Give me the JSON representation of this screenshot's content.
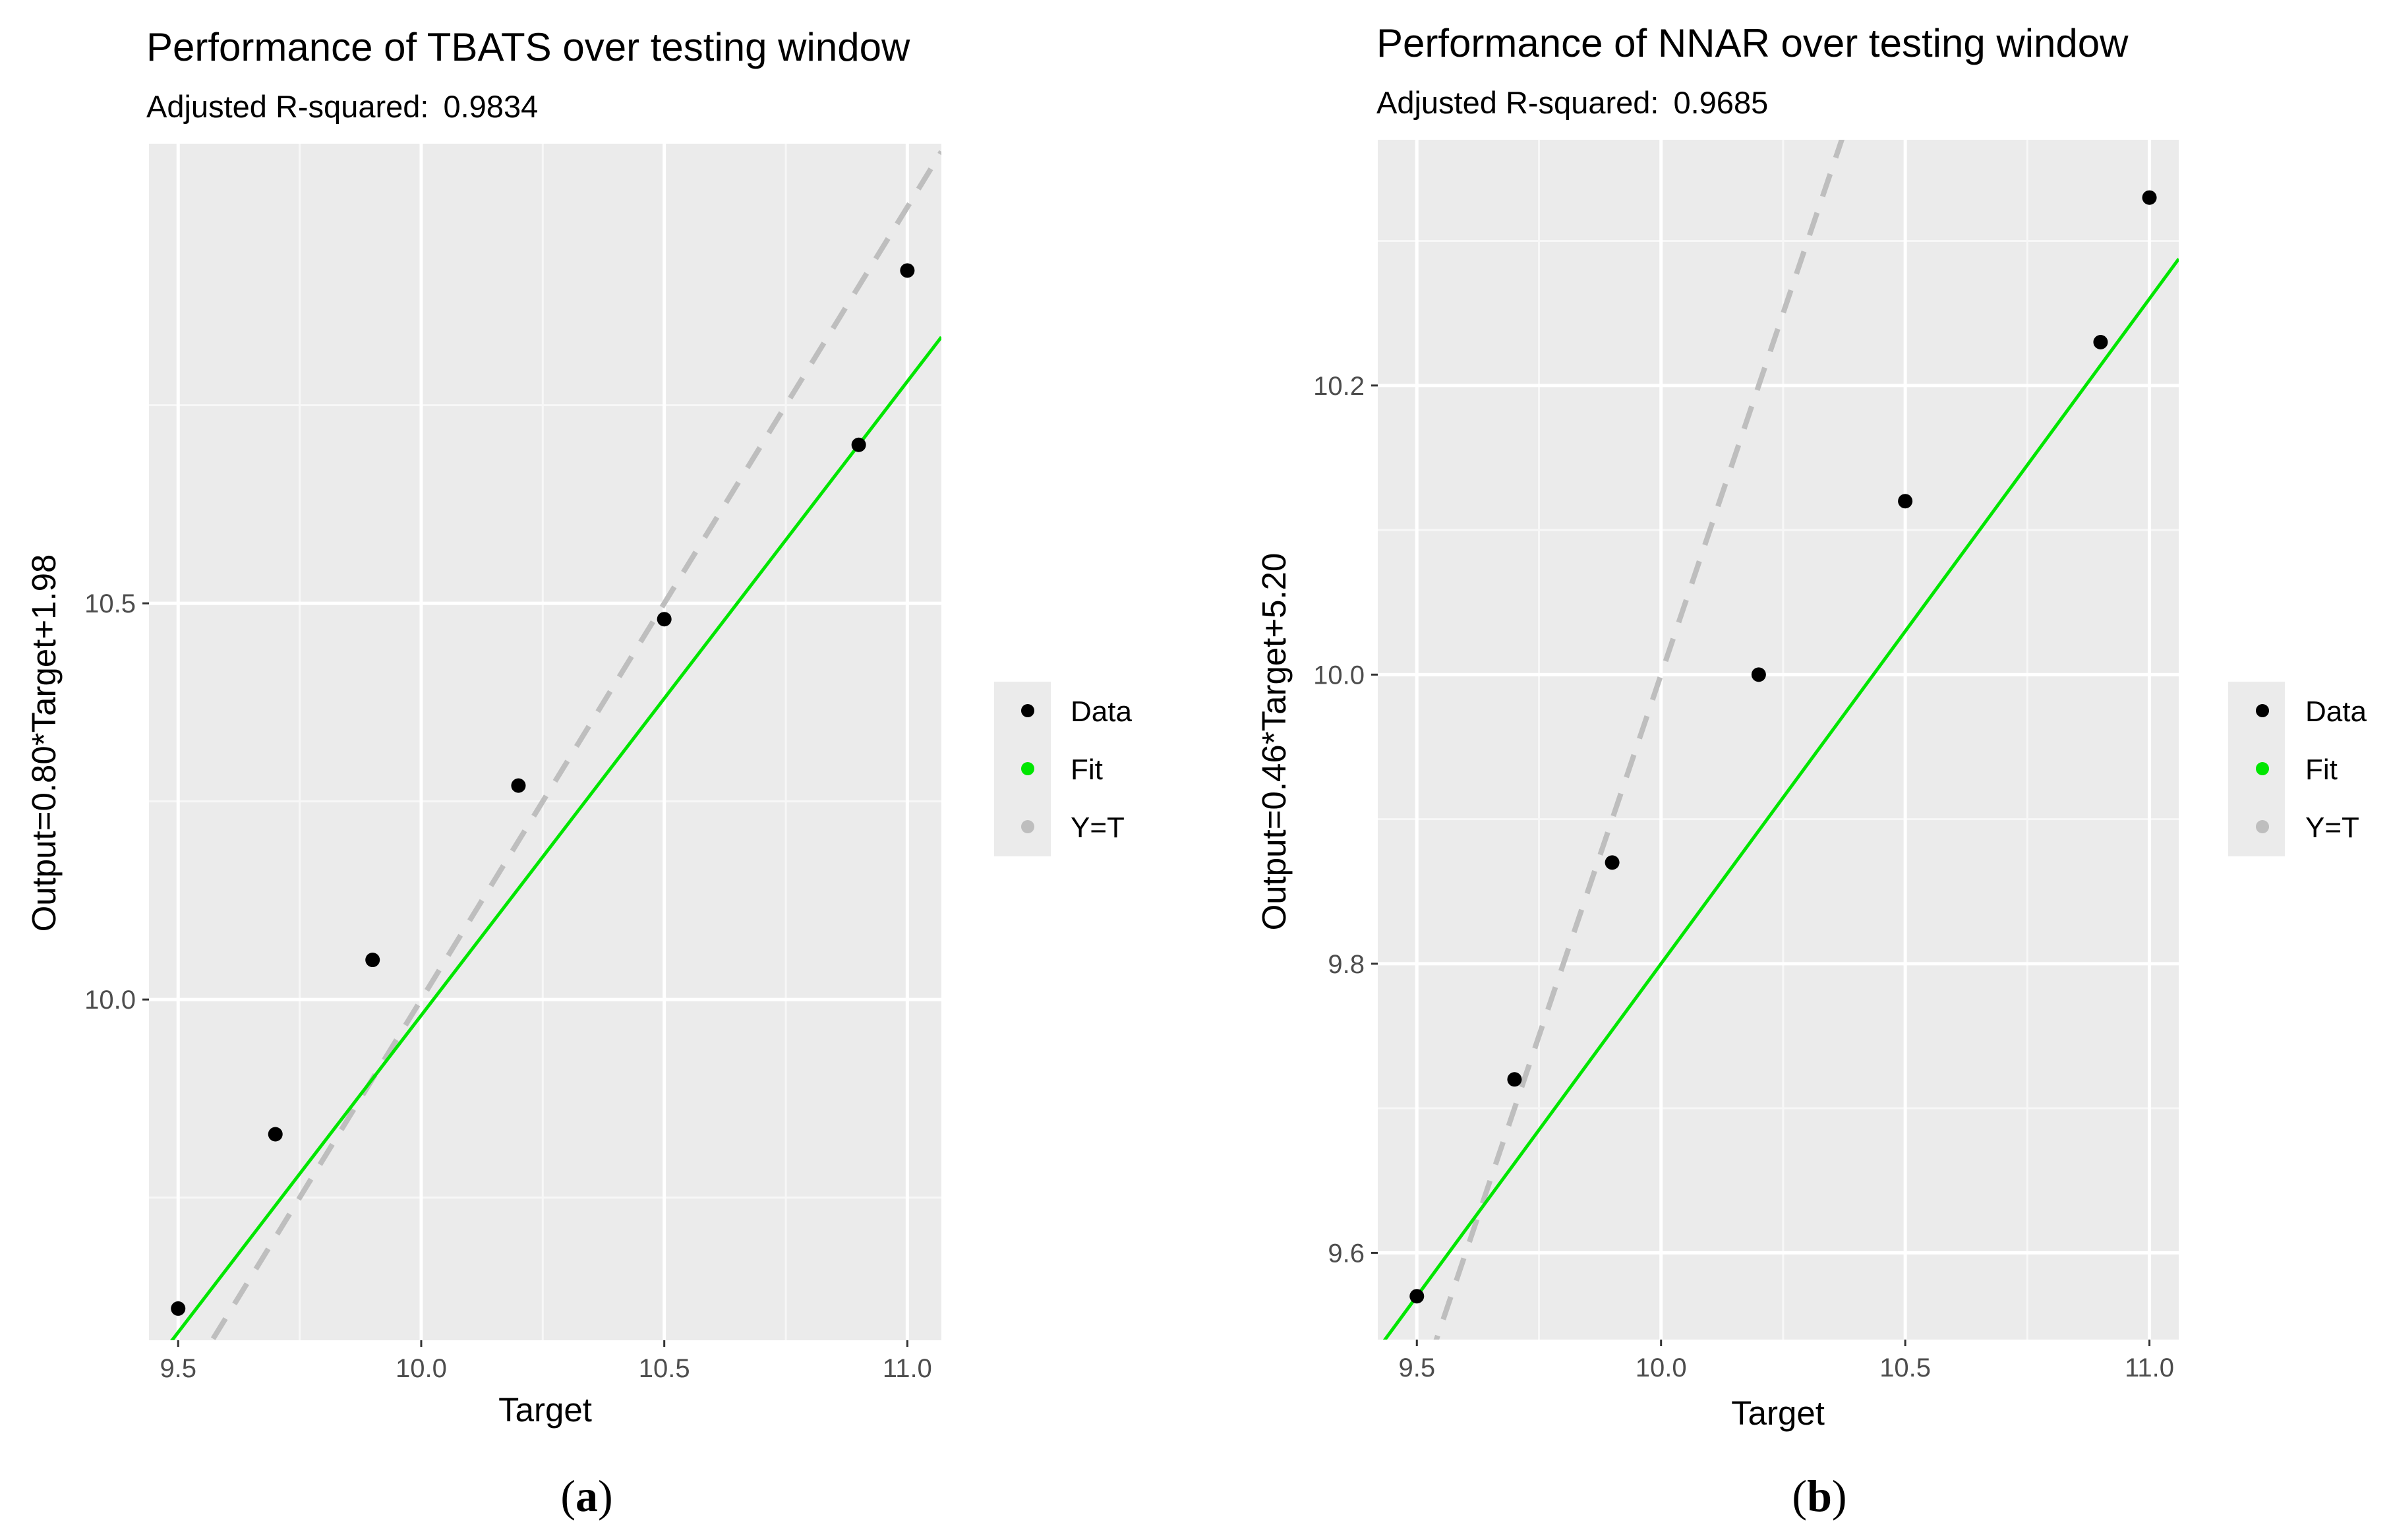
{
  "chart_data": [
    {
      "type": "scatter",
      "panel_label": "a",
      "title": "Performance of TBATS over testing window",
      "subtitle_label": "Adjusted R-squared:",
      "subtitle_value": "0.9834",
      "xlabel": "Target",
      "ylabel": "Output=0.80*Target+1.98",
      "xlim": [
        9.44,
        11.07
      ],
      "ylim": [
        9.57,
        11.08
      ],
      "x_ticks": [
        9.5,
        10.0,
        10.5,
        11.0
      ],
      "x_tick_labels": [
        "9.5",
        "10.0",
        "10.5",
        "11.0"
      ],
      "y_ticks": [
        10.0,
        10.5
      ],
      "y_tick_labels": [
        "10.0",
        "10.5"
      ],
      "series": [
        {
          "name": "Data",
          "kind": "points",
          "color": "#000000",
          "x": [
            9.5,
            9.7,
            9.9,
            10.2,
            10.5,
            10.9,
            11.0
          ],
          "y": [
            9.61,
            9.83,
            10.05,
            10.27,
            10.48,
            10.7,
            10.92
          ]
        },
        {
          "name": "Fit",
          "kind": "line",
          "color": "#00e600",
          "slope": 0.8,
          "intercept": 1.98
        },
        {
          "name": "Y=T",
          "kind": "dashed-line",
          "color": "#bebebe",
          "slope": 1.0,
          "intercept": 0.0
        }
      ],
      "legend": {
        "placement": "right",
        "entries": [
          "Data",
          "Fit",
          "Y=T"
        ]
      },
      "grid": true
    },
    {
      "type": "scatter",
      "panel_label": "b",
      "title": "Performance of NNAR over testing window",
      "subtitle_label": "Adjusted R-squared:",
      "subtitle_value": "0.9685",
      "xlabel": "Target",
      "ylabel": "Output=0.46*Target+5.20",
      "xlim": [
        9.42,
        11.06
      ],
      "ylim": [
        9.54,
        10.37
      ],
      "x_ticks": [
        9.5,
        10.0,
        10.5,
        11.0
      ],
      "x_tick_labels": [
        "9.5",
        "10.0",
        "10.5",
        "11.0"
      ],
      "y_ticks": [
        9.6,
        9.8,
        10.0,
        10.2
      ],
      "y_tick_labels": [
        "9.6",
        "9.8",
        "10.0",
        "10.2"
      ],
      "series": [
        {
          "name": "Data",
          "kind": "points",
          "color": "#000000",
          "x": [
            9.5,
            9.7,
            9.9,
            10.2,
            10.5,
            10.9,
            11.0
          ],
          "y": [
            9.57,
            9.72,
            9.87,
            10.0,
            10.12,
            10.23,
            10.33
          ]
        },
        {
          "name": "Fit",
          "kind": "line",
          "color": "#00e600",
          "slope": 0.46,
          "intercept": 5.2
        },
        {
          "name": "Y=T",
          "kind": "dashed-line",
          "color": "#bebebe",
          "slope": 1.0,
          "intercept": 0.0
        }
      ],
      "legend": {
        "placement": "right",
        "entries": [
          "Data",
          "Fit",
          "Y=T"
        ]
      },
      "grid": true
    }
  ]
}
